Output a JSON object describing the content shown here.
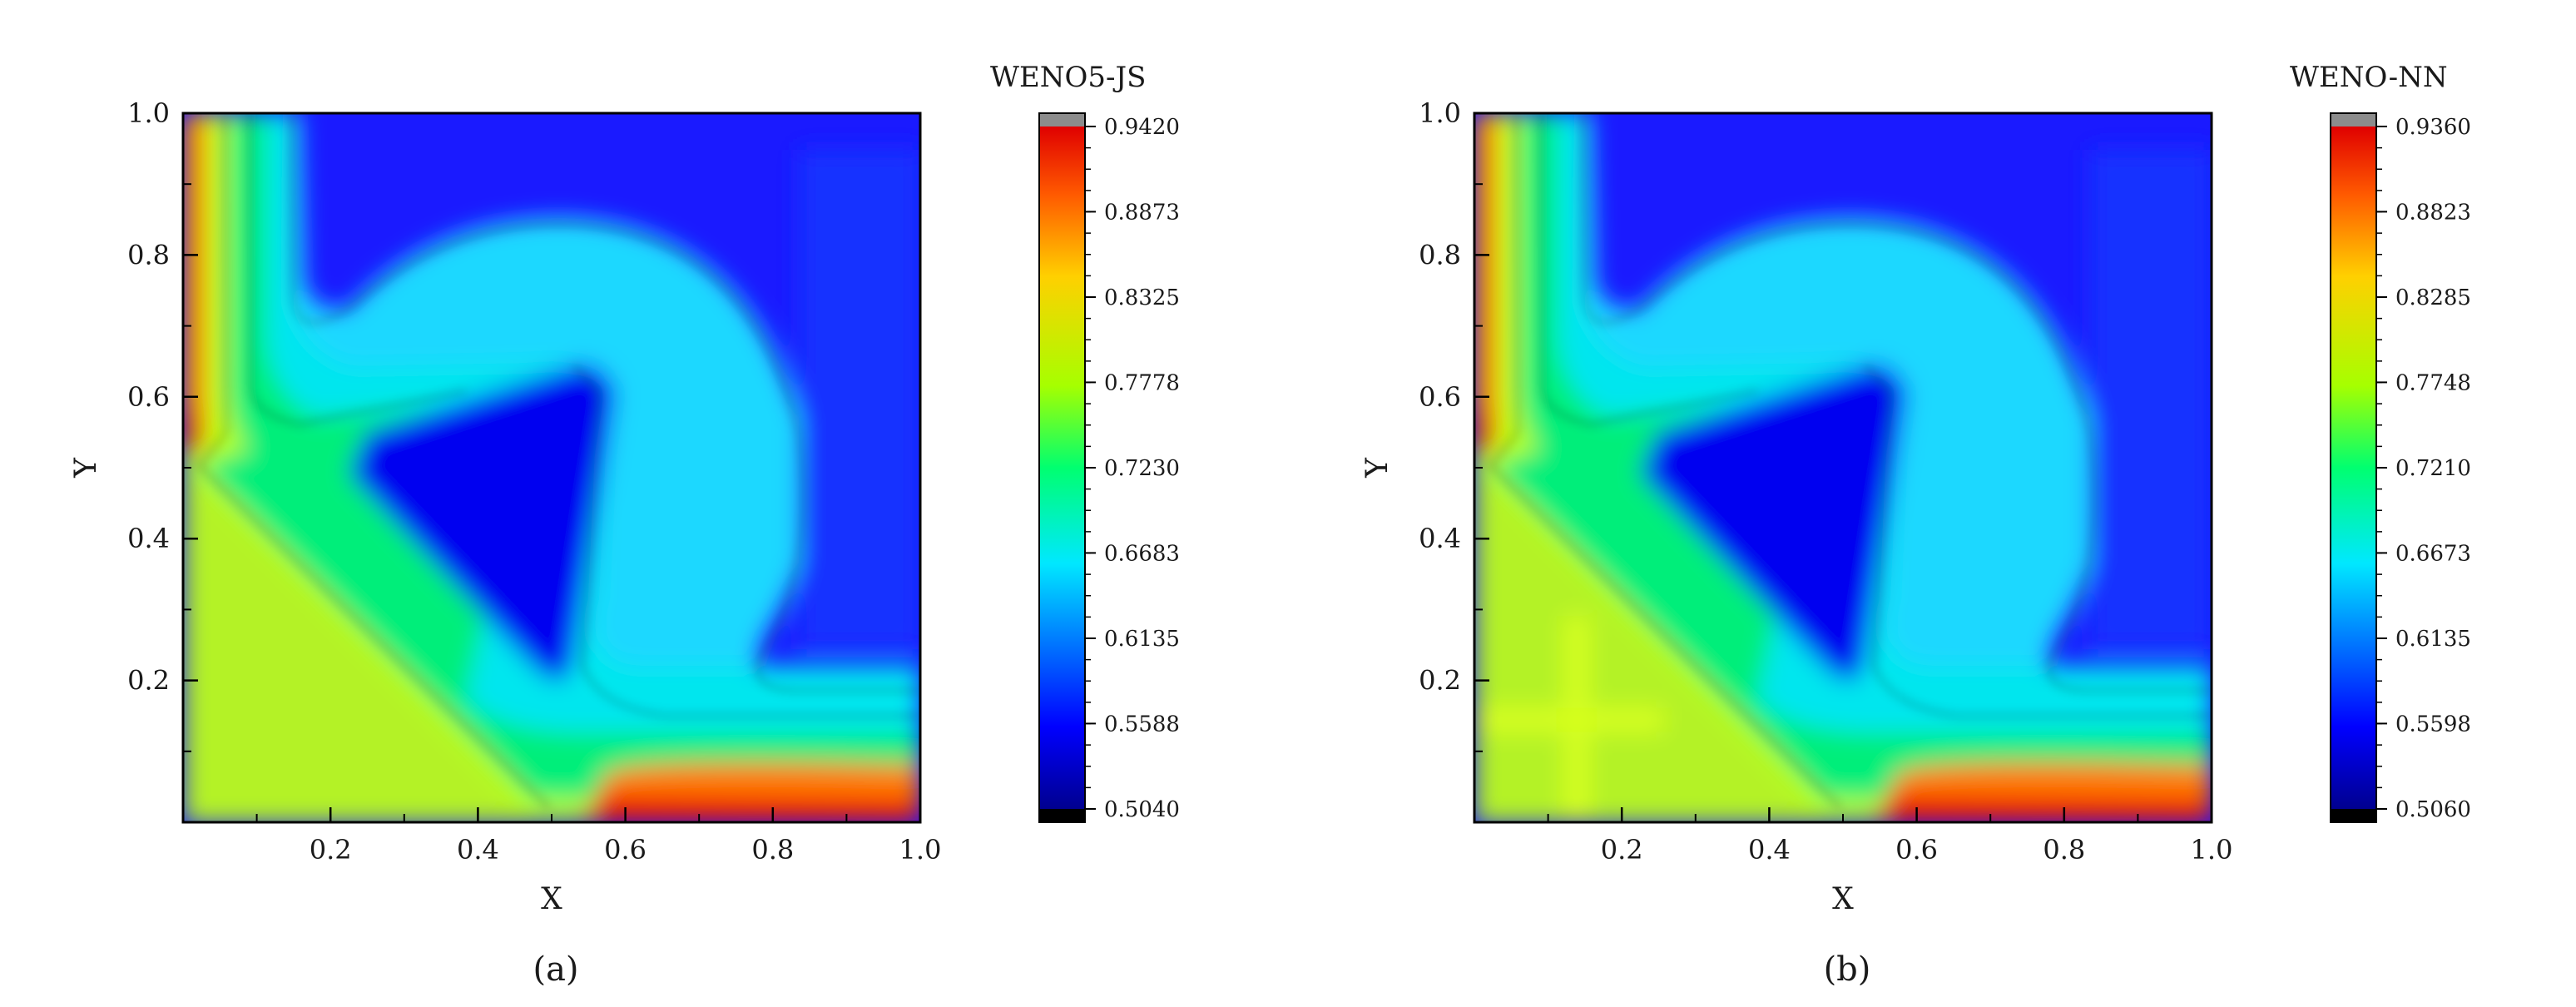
{
  "chart_data": [
    {
      "type": "heatmap",
      "panel_label": "(a)",
      "colorbar_title": "WENO5-JS",
      "xlabel": "X",
      "ylabel": "Y",
      "xlim": [
        0,
        1
      ],
      "ylim": [
        0,
        1
      ],
      "xticks": [
        "0.2",
        "0.4",
        "0.6",
        "0.8",
        "1.0"
      ],
      "yticks": [
        "0.2",
        "0.4",
        "0.6",
        "0.8",
        "1.0"
      ],
      "colorbar_range": [
        0.504,
        0.942
      ],
      "colorbar_ticks": [
        "0.9420",
        "0.8873",
        "0.8325",
        "0.7778",
        "0.7230",
        "0.6683",
        "0.6135",
        "0.5588",
        "0.5040"
      ],
      "colormap": "jet",
      "contour_lines": true
    },
    {
      "type": "heatmap",
      "panel_label": "(b)",
      "colorbar_title": "WENO-NN",
      "xlabel": "X",
      "ylabel": "Y",
      "xlim": [
        0,
        1
      ],
      "ylim": [
        0,
        1
      ],
      "xticks": [
        "0.2",
        "0.4",
        "0.6",
        "0.8",
        "1.0"
      ],
      "yticks": [
        "0.2",
        "0.4",
        "0.6",
        "0.8",
        "1.0"
      ],
      "colorbar_range": [
        0.506,
        0.936
      ],
      "colorbar_ticks": [
        "0.9360",
        "0.8823",
        "0.8285",
        "0.7748",
        "0.7210",
        "0.6673",
        "0.6135",
        "0.5598",
        "0.5060"
      ],
      "colormap": "jet",
      "contour_lines": true
    }
  ]
}
